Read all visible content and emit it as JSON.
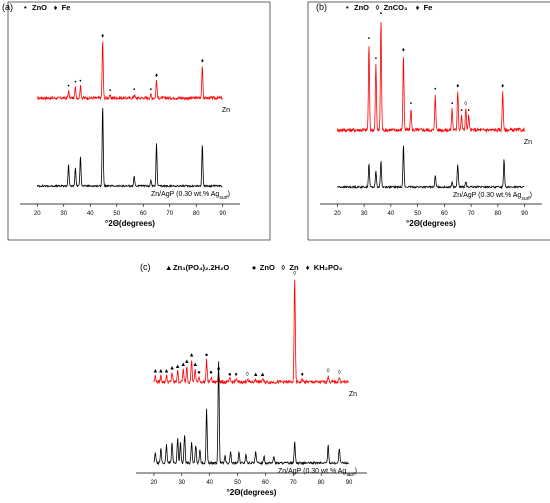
{
  "chart_data": [
    {
      "id": "a",
      "type": "line",
      "panel_label": "(a)",
      "xlabel": "°2Θ(degrees)",
      "xlim": [
        15,
        95
      ],
      "xticks": [
        20,
        30,
        40,
        50,
        60,
        70,
        80,
        90
      ],
      "legend": [
        {
          "symbol": "•",
          "name": "ZnO"
        },
        {
          "symbol": "♦",
          "name": "Fe"
        }
      ],
      "legend_position": "top-left",
      "series": [
        {
          "label": "Zn",
          "color": "#ff0000",
          "baseline": 0.42,
          "noise": 0.012,
          "peaks": [
            [
              31.8,
              0.06
            ],
            [
              34.4,
              0.09
            ],
            [
              36.3,
              0.1
            ],
            [
              44.7,
              0.48
            ],
            [
              47.5,
              0.02
            ],
            [
              56.6,
              0.03
            ],
            [
              62.9,
              0.03
            ],
            [
              65.0,
              0.15
            ],
            [
              82.3,
              0.27
            ]
          ],
          "markers": [
            {
              "x": 31.8,
              "symbol": "•"
            },
            {
              "x": 34.4,
              "symbol": "•"
            },
            {
              "x": 36.3,
              "symbol": "•"
            },
            {
              "x": 44.7,
              "symbol": "♦"
            },
            {
              "x": 47.5,
              "symbol": "•"
            },
            {
              "x": 56.6,
              "symbol": "•"
            },
            {
              "x": 62.9,
              "symbol": "•"
            },
            {
              "x": 65.0,
              "symbol": "♦"
            },
            {
              "x": 82.3,
              "symbol": "♦"
            }
          ]
        },
        {
          "label": "Zn/AgP (0.30 wt.% Ag",
          "label_sub": "surf",
          "label_tail": ")",
          "color": "#000000",
          "baseline": 0.0,
          "noise": 0.006,
          "peaks": [
            [
              31.8,
              0.16
            ],
            [
              34.4,
              0.13
            ],
            [
              36.3,
              0.22
            ],
            [
              44.7,
              0.58
            ],
            [
              56.6,
              0.07
            ],
            [
              62.9,
              0.04
            ],
            [
              65.0,
              0.3
            ],
            [
              82.3,
              0.3
            ]
          ],
          "markers": []
        }
      ]
    },
    {
      "id": "b",
      "type": "line",
      "panel_label": "(b)",
      "xlabel": "°2Θ(degrees)",
      "xlim": [
        15,
        95
      ],
      "xticks": [
        20,
        30,
        40,
        50,
        60,
        70,
        80,
        90
      ],
      "legend": [
        {
          "symbol": "•",
          "name": "ZnO"
        },
        {
          "symbol": "◊",
          "name": "ZnCO₃"
        },
        {
          "symbol": "♦",
          "name": "Fe"
        }
      ],
      "legend_position": "top",
      "series": [
        {
          "label": "Zn",
          "color": "#ff0000",
          "baseline": 0.42,
          "noise": 0.01,
          "peaks": [
            [
              31.8,
              0.48
            ],
            [
              34.4,
              0.37
            ],
            [
              36.3,
              0.62
            ],
            [
              44.7,
              0.42
            ],
            [
              47.5,
              0.12
            ],
            [
              56.6,
              0.2
            ],
            [
              62.9,
              0.12
            ],
            [
              65.0,
              0.22
            ],
            [
              66.4,
              0.08
            ],
            [
              68.0,
              0.12
            ],
            [
              69.1,
              0.08
            ],
            [
              81.8,
              0.22
            ]
          ],
          "markers": [
            {
              "x": 31.8,
              "symbol": "•"
            },
            {
              "x": 34.4,
              "symbol": "•"
            },
            {
              "x": 36.3,
              "symbol": "•"
            },
            {
              "x": 44.7,
              "symbol": "♦"
            },
            {
              "x": 47.5,
              "symbol": "•"
            },
            {
              "x": 56.6,
              "symbol": "•"
            },
            {
              "x": 62.9,
              "symbol": "•"
            },
            {
              "x": 65.0,
              "symbol": "♦"
            },
            {
              "x": 66.4,
              "symbol": "•"
            },
            {
              "x": 68.0,
              "symbol": "◊"
            },
            {
              "x": 69.1,
              "symbol": "•"
            },
            {
              "x": 81.8,
              "symbol": "♦"
            }
          ]
        },
        {
          "label": "Zn/AgP (0.30 wt.% Ag",
          "label_sub": "surf",
          "label_tail": ")",
          "color": "#000000",
          "baseline": 0.0,
          "noise": 0.006,
          "peaks": [
            [
              31.8,
              0.17
            ],
            [
              34.4,
              0.12
            ],
            [
              36.3,
              0.19
            ],
            [
              44.7,
              0.3
            ],
            [
              56.6,
              0.08
            ],
            [
              62.9,
              0.04
            ],
            [
              65.0,
              0.16
            ],
            [
              68.0,
              0.04
            ],
            [
              82.3,
              0.2
            ]
          ],
          "markers": []
        }
      ]
    },
    {
      "id": "c",
      "type": "line",
      "panel_label": "(c)",
      "xlabel": "°2Θ(degrees)",
      "xlim": [
        15,
        95
      ],
      "xticks": [
        20,
        30,
        40,
        50,
        60,
        70,
        80,
        90
      ],
      "legend": [
        {
          "symbol": "▲",
          "name": "Zn₃(PO₄)₂.2H₂O"
        },
        {
          "symbol": "●",
          "name": "ZnO"
        },
        {
          "symbol": "◊",
          "name": "Zn"
        },
        {
          "symbol": "♦",
          "name": "KH₂PO₄"
        }
      ],
      "legend_position": "top",
      "series": [
        {
          "label": "Zn",
          "color": "#ff0000",
          "baseline": 0.4,
          "noise": 0.01,
          "peaks": [
            [
              20.5,
              0.04
            ],
            [
              22.5,
              0.04
            ],
            [
              24.5,
              0.04
            ],
            [
              26.5,
              0.06
            ],
            [
              28.5,
              0.07
            ],
            [
              30.5,
              0.08
            ],
            [
              31.8,
              0.1
            ],
            [
              33.5,
              0.14
            ],
            [
              34.8,
              0.08
            ],
            [
              36.2,
              0.03
            ],
            [
              38.9,
              0.14
            ],
            [
              40.5,
              0.03
            ],
            [
              43.2,
              0.06
            ],
            [
              47.2,
              0.02
            ],
            [
              49.5,
              0.02
            ],
            [
              53.5,
              0.02
            ],
            [
              56.5,
              0.02
            ],
            [
              59.0,
              0.02
            ],
            [
              70.5,
              0.65
            ],
            [
              73.2,
              0.02
            ],
            [
              82.5,
              0.04
            ],
            [
              86.5,
              0.03
            ]
          ],
          "markers": [
            {
              "x": 20.5,
              "symbol": "▲"
            },
            {
              "x": 22.5,
              "symbol": "▲"
            },
            {
              "x": 24.5,
              "symbol": "▲"
            },
            {
              "x": 26.5,
              "symbol": "▲"
            },
            {
              "x": 28.5,
              "symbol": "▲"
            },
            {
              "x": 30.5,
              "symbol": "▲"
            },
            {
              "x": 31.8,
              "symbol": "▲"
            },
            {
              "x": 33.5,
              "symbol": "▲"
            },
            {
              "x": 34.8,
              "symbol": "▲"
            },
            {
              "x": 36.2,
              "symbol": "●"
            },
            {
              "x": 38.9,
              "symbol": "●"
            },
            {
              "x": 40.5,
              "symbol": "●"
            },
            {
              "x": 43.2,
              "symbol": "▲"
            },
            {
              "x": 47.2,
              "symbol": "●"
            },
            {
              "x": 49.5,
              "symbol": "♦"
            },
            {
              "x": 53.5,
              "symbol": "◊"
            },
            {
              "x": 56.5,
              "symbol": "▲"
            },
            {
              "x": 59.0,
              "symbol": "▲"
            },
            {
              "x": 70.5,
              "symbol": "◊"
            },
            {
              "x": 73.2,
              "symbol": "♦"
            },
            {
              "x": 82.5,
              "symbol": "◊"
            },
            {
              "x": 86.5,
              "symbol": "◊"
            }
          ]
        },
        {
          "label": "Zn/AgP (0.30 wt.% Ag",
          "label_sub": "surf",
          "label_tail": ")",
          "color": "#000000",
          "baseline": 0.0,
          "noise": 0.006,
          "peaks": [
            [
              20.5,
              0.06
            ],
            [
              22.5,
              0.08
            ],
            [
              24.5,
              0.1
            ],
            [
              26.5,
              0.12
            ],
            [
              28.5,
              0.14
            ],
            [
              29.5,
              0.12
            ],
            [
              31.0,
              0.16
            ],
            [
              33.5,
              0.12
            ],
            [
              35.0,
              0.1
            ],
            [
              36.5,
              0.08
            ],
            [
              38.9,
              0.3
            ],
            [
              43.2,
              0.58
            ],
            [
              45.5,
              0.04
            ],
            [
              47.5,
              0.06
            ],
            [
              50.5,
              0.06
            ],
            [
              53.0,
              0.05
            ],
            [
              56.5,
              0.06
            ],
            [
              59.5,
              0.04
            ],
            [
              63.0,
              0.04
            ],
            [
              70.5,
              0.12
            ],
            [
              82.5,
              0.1
            ],
            [
              86.5,
              0.08
            ]
          ],
          "markers": []
        }
      ]
    }
  ]
}
